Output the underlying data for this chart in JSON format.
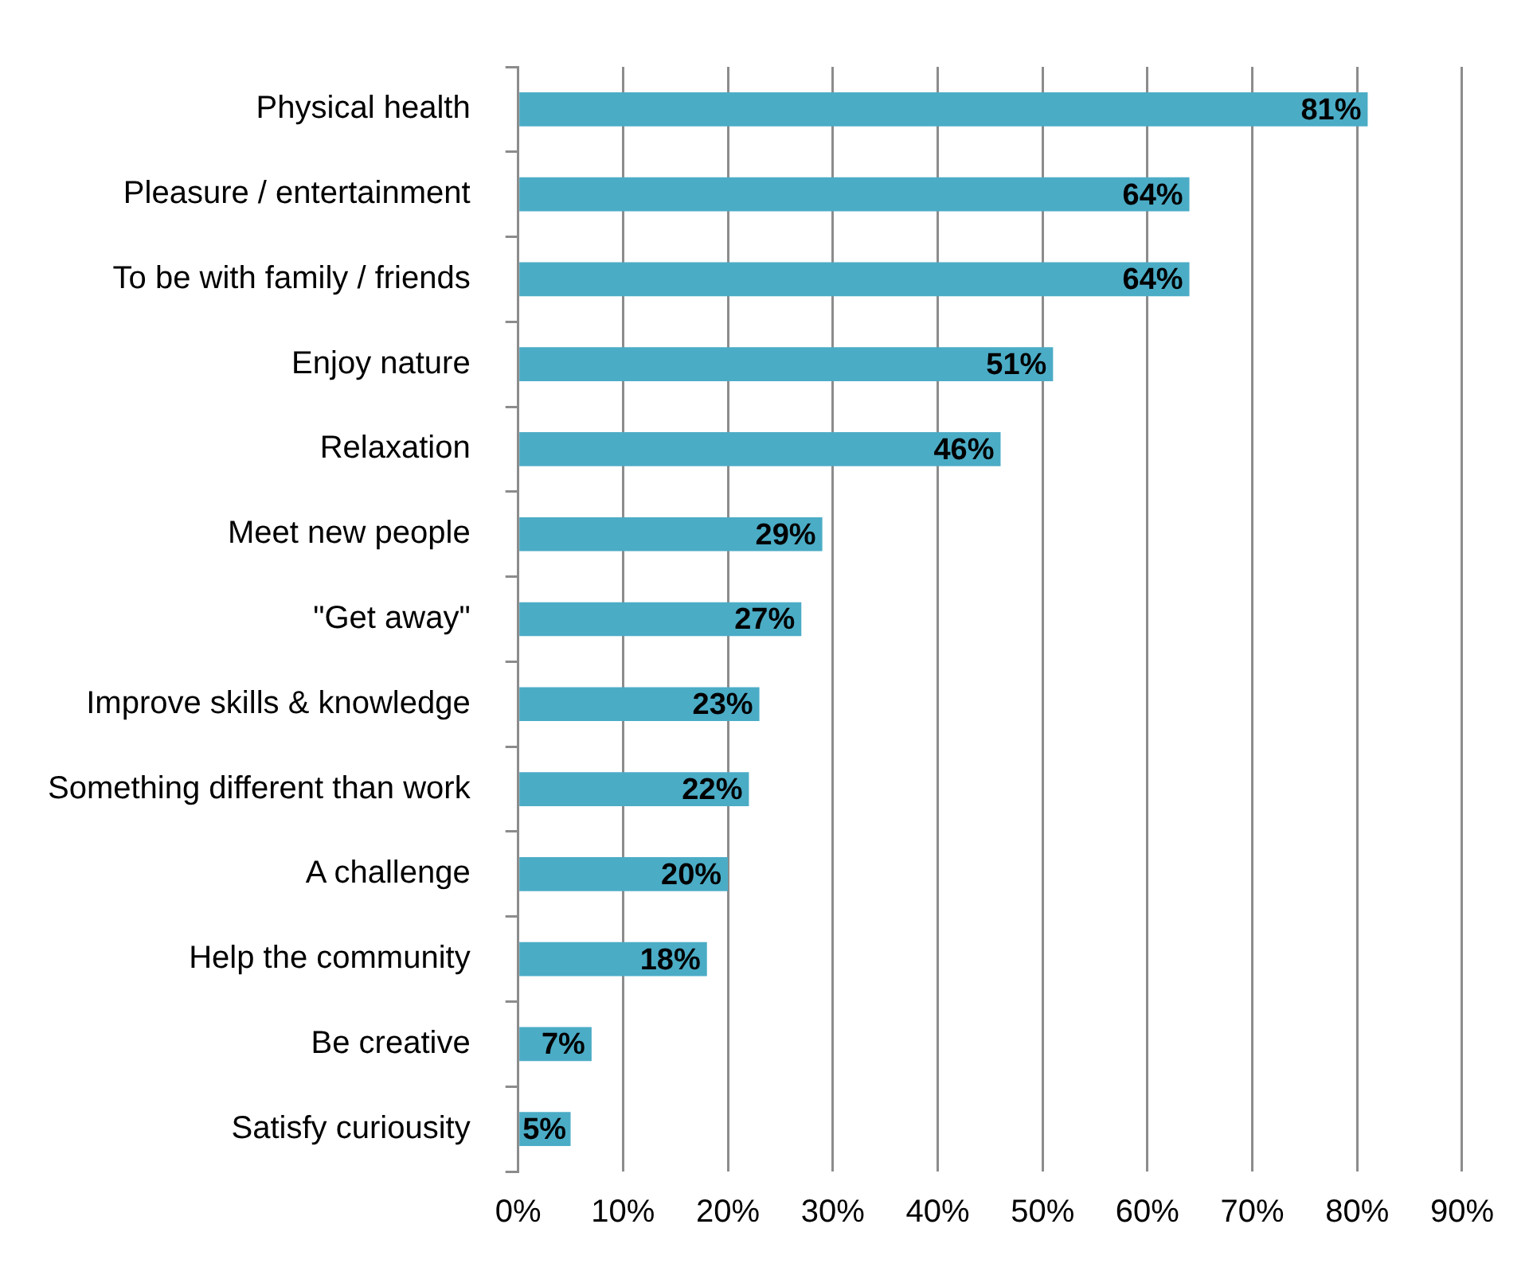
{
  "chart_data": {
    "type": "bar",
    "orientation": "horizontal",
    "categories": [
      "Physical health",
      "Pleasure / entertainment",
      "To be with family / friends",
      "Enjoy nature",
      "Relaxation",
      "Meet new people",
      "\"Get away\"",
      "Improve skills & knowledge",
      "Something different than work",
      "A challenge",
      "Help the community",
      "Be creative",
      "Satisfy curiousity"
    ],
    "values": [
      81,
      64,
      64,
      51,
      46,
      29,
      27,
      23,
      22,
      20,
      18,
      7,
      5
    ],
    "value_labels": [
      "81%",
      "64%",
      "64%",
      "51%",
      "46%",
      "29%",
      "27%",
      "23%",
      "22%",
      "20%",
      "18%",
      "7%",
      "5%"
    ],
    "color": "#4bacc6",
    "xlim": [
      0,
      90
    ],
    "xticks": [
      {
        "value": 0,
        "label": "0%"
      },
      {
        "value": 10,
        "label": "10%"
      },
      {
        "value": 20,
        "label": "20%"
      },
      {
        "value": 30,
        "label": "30%"
      },
      {
        "value": 40,
        "label": "40%"
      },
      {
        "value": 50,
        "label": "50%"
      },
      {
        "value": 60,
        "label": "60%"
      },
      {
        "value": 70,
        "label": "70%"
      },
      {
        "value": 80,
        "label": "80%"
      },
      {
        "value": 90,
        "label": "90%"
      }
    ],
    "grid": "x"
  }
}
